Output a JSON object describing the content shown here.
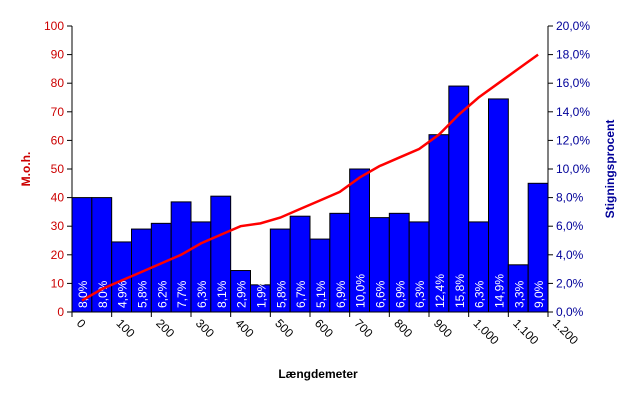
{
  "chart_data": {
    "type": "bar-line",
    "x_label": "Længdemeter",
    "y_label": "M.o.h.",
    "y2_label": "Stigningsprocent",
    "x": [
      25,
      75,
      125,
      175,
      225,
      275,
      325,
      375,
      425,
      475,
      525,
      575,
      625,
      675,
      725,
      775,
      825,
      875,
      925,
      975,
      1025,
      1075,
      1125,
      1175
    ],
    "xlim": [
      0,
      1200
    ],
    "xticks": [
      0,
      100,
      200,
      300,
      400,
      500,
      600,
      700,
      800,
      900,
      {
        "value": 1000,
        "label": "1.000"
      },
      {
        "value": 1100,
        "label": "1.100"
      },
      {
        "value": 1200,
        "label": "1.200"
      }
    ],
    "ylim": [
      0,
      100
    ],
    "yticks": [
      0,
      10,
      20,
      30,
      40,
      50,
      60,
      70,
      80,
      90,
      100
    ],
    "y2lim": [
      0,
      20
    ],
    "y2ticks": [
      {
        "value": 0,
        "label": "0,0%"
      },
      {
        "value": 2,
        "label": "2,0%"
      },
      {
        "value": 4,
        "label": "4,0%"
      },
      {
        "value": 6,
        "label": "6,0%"
      },
      {
        "value": 8,
        "label": "8,0%"
      },
      {
        "value": 10,
        "label": "10,0%"
      },
      {
        "value": 12,
        "label": "12,0%"
      },
      {
        "value": 14,
        "label": "14,0%"
      },
      {
        "value": 16,
        "label": "16,0%"
      },
      {
        "value": 18,
        "label": "18,0%"
      },
      {
        "value": 20,
        "label": "20,0%"
      }
    ],
    "bar_width": 50,
    "series": [
      {
        "type": "bar",
        "axis": "y2",
        "color": "#0000ff",
        "values": [
          8.0,
          8.0,
          4.9,
          5.8,
          6.2,
          7.7,
          6.3,
          8.1,
          2.9,
          1.9,
          5.8,
          6.7,
          5.1,
          6.9,
          10.0,
          6.6,
          6.9,
          6.3,
          12.4,
          15.8,
          6.3,
          14.9,
          3.3,
          9.0
        ],
        "value_labels": [
          "8,0%",
          "8,0%",
          "4,9%",
          "5,8%",
          "6,2%",
          "7,7%",
          "6,3%",
          "8,1%",
          "2,9%",
          "1,9%",
          "5,8%",
          "6,7%",
          "5,1%",
          "6,9%",
          "10,0%",
          "6,6%",
          "6,9%",
          "6,3%",
          "12,4%",
          "15,8%",
          "6,3%",
          "14,9%",
          "3,3%",
          "9,0%"
        ]
      },
      {
        "type": "line",
        "color": "#ff0000",
        "values": [
          4,
          8,
          11,
          14,
          17,
          20,
          24,
          27,
          30,
          31,
          33,
          36,
          39,
          42,
          47,
          51,
          54,
          57,
          62,
          69,
          75,
          80,
          85,
          90
        ]
      }
    ]
  }
}
